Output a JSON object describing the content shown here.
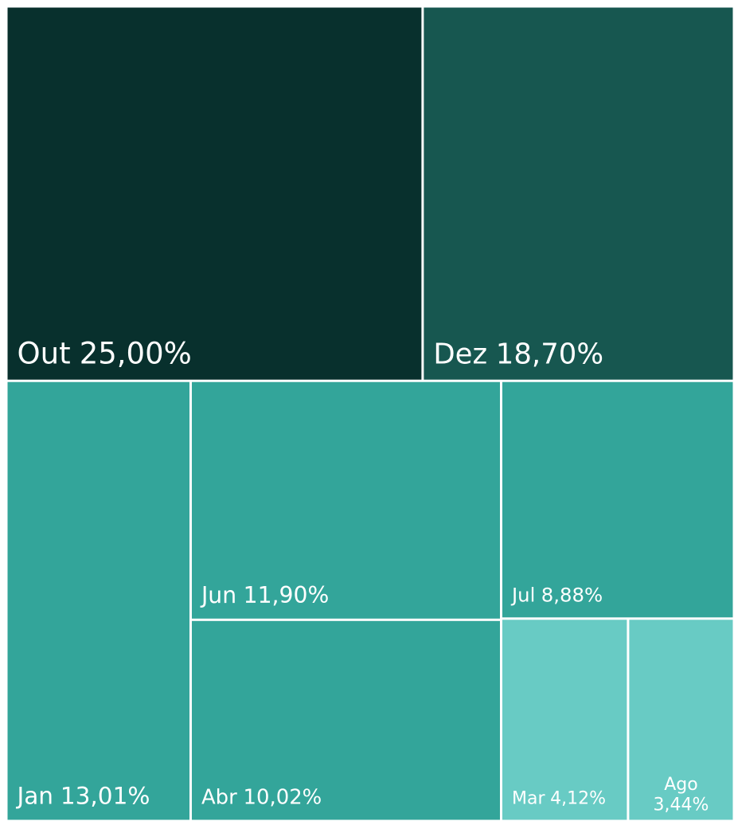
{
  "chart_data": {
    "type": "treemap",
    "categories": [
      "Out",
      "Dez",
      "Jan",
      "Jun",
      "Abr",
      "Jul",
      "Mar",
      "Ago"
    ],
    "values": [
      25.0,
      18.7,
      13.01,
      11.9,
      10.02,
      8.88,
      4.12,
      3.44
    ],
    "value_labels": [
      "25,00%",
      "18,70%",
      "13,01%",
      "11,90%",
      "10,02%",
      "8,88%",
      "4,12%",
      "3,44%"
    ],
    "colors": [
      "#08302d",
      "#175750",
      "#33a59a",
      "#33a59a",
      "#33a59a",
      "#33a59a",
      "#68cbc4",
      "#68cbc4"
    ]
  }
}
